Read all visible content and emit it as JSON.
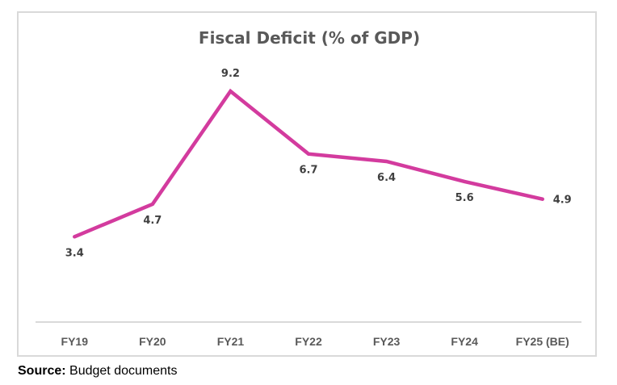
{
  "chart_data": {
    "type": "line",
    "title": "Fiscal Deficit (% of GDP)",
    "xlabel": "",
    "ylabel": "",
    "categories": [
      "FY19",
      "FY20",
      "FY21",
      "FY22",
      "FY23",
      "FY24",
      "FY25 (BE)"
    ],
    "series": [
      {
        "name": "Fiscal Deficit (% of GDP)",
        "values": [
          3.4,
          4.7,
          9.2,
          6.7,
          6.4,
          5.6,
          4.9
        ],
        "labels": [
          "3.4",
          "4.7",
          "9.2",
          "6.7",
          "6.4",
          "5.6",
          "4.9"
        ],
        "label_positions": [
          "below",
          "below",
          "above",
          "below",
          "below",
          "below",
          "right"
        ],
        "color": "#d33b9e"
      }
    ],
    "ylim": [
      0,
      9.2
    ],
    "grid": false,
    "legend": "none"
  },
  "source": {
    "label": "Source:",
    "text": "Budget documents"
  },
  "colors": {
    "line": "#d33b9e",
    "axis": "#d9d9d9",
    "frame": "#d9d9d9",
    "title": "#595959",
    "data_label": "#404040",
    "tick_label": "#595959"
  }
}
